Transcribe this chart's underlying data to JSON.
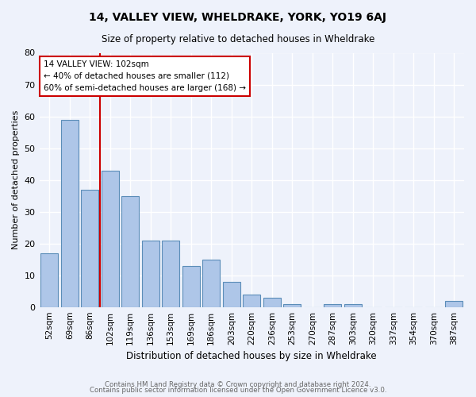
{
  "title": "14, VALLEY VIEW, WHELDRAKE, YORK, YO19 6AJ",
  "subtitle": "Size of property relative to detached houses in Wheldrake",
  "xlabel": "Distribution of detached houses by size in Wheldrake",
  "ylabel": "Number of detached properties",
  "bin_labels": [
    "52sqm",
    "69sqm",
    "86sqm",
    "102sqm",
    "119sqm",
    "136sqm",
    "153sqm",
    "169sqm",
    "186sqm",
    "203sqm",
    "220sqm",
    "236sqm",
    "253sqm",
    "270sqm",
    "287sqm",
    "303sqm",
    "320sqm",
    "337sqm",
    "354sqm",
    "370sqm",
    "387sqm"
  ],
  "bar_heights": [
    17,
    59,
    37,
    43,
    35,
    21,
    21,
    13,
    15,
    8,
    4,
    3,
    1,
    0,
    1,
    1,
    0,
    0,
    0,
    0,
    2
  ],
  "bar_color": "#aec6e8",
  "bar_edge_color": "#5b8db8",
  "vline_color": "#cc0000",
  "vline_x_index": 3,
  "annotation_text": "14 VALLEY VIEW: 102sqm\n← 40% of detached houses are smaller (112)\n60% of semi-detached houses are larger (168) →",
  "annotation_box_color": "#ffffff",
  "annotation_box_edge_color": "#cc0000",
  "ylim": [
    0,
    80
  ],
  "yticks": [
    0,
    10,
    20,
    30,
    40,
    50,
    60,
    70,
    80
  ],
  "background_color": "#eef2fb",
  "grid_color": "#ffffff",
  "footer_line1": "Contains HM Land Registry data © Crown copyright and database right 2024.",
  "footer_line2": "Contains public sector information licensed under the Open Government Licence v3.0."
}
